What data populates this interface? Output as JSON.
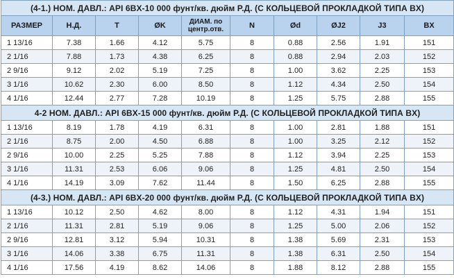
{
  "columns": [
    "РАЗМЕР",
    "Н.Д.",
    "T",
    "ØK",
    "ДИАМ. по центр.отв.",
    "N",
    "Ød",
    "ØJ2",
    "J3",
    "BX"
  ],
  "sections": [
    {
      "title": "(4-1.) НОМ. ДАВЛ.: API 6BX-10 000 фунт/кв. дюйм Р.Д. (С КОЛЬЦЕВОЙ ПРОКЛАДКОЙ ТИПА BX)",
      "rows": [
        [
          "1 13/16",
          "7.38",
          "1.66",
          "4.12",
          "5.75",
          "8",
          "0.88",
          "2.56",
          "1.91",
          "151"
        ],
        [
          "2 1/16",
          "7.88",
          "1.73",
          "4.38",
          "6.25",
          "8",
          "0.88",
          "2.94",
          "2.03",
          "152"
        ],
        [
          "2 9/16",
          "9.12",
          "2.02",
          "5.19",
          "7.25",
          "8",
          "1.00",
          "3.62",
          "2.25",
          "153"
        ],
        [
          "3 1/16",
          "10.62",
          "2.30",
          "6.00",
          "8.50",
          "8",
          "1.12",
          "4.34",
          "2.50",
          "154"
        ],
        [
          "4 1/16",
          "12.44",
          "2.77",
          "7.28",
          "10.19",
          "8",
          "1.25",
          "5.75",
          "2.88",
          "155"
        ]
      ]
    },
    {
      "title": "4-2 НОМ. ДАВЛ.: API 6BX-15 000 фунт/кв. дюйм Р.Д. (С КОЛЬЦЕВОЙ ПРОКЛАДКОЙ ТИПА BX)",
      "rows": [
        [
          "1 13/16",
          "8.19",
          "1.78",
          "4.19",
          "6.31",
          "8",
          "1.00",
          "2.81",
          "1.88",
          "151"
        ],
        [
          "2 1/16",
          "8.75",
          "2.00",
          "4.50",
          "6.88",
          "8",
          "1.00",
          "3.25",
          "2.12",
          "152"
        ],
        [
          "2 9/16",
          "10.00",
          "2.25",
          "5.25",
          "7.88",
          "8",
          "1.12",
          "3.94",
          "2.25",
          "153"
        ],
        [
          "3 1/16",
          "11.31",
          "2.53",
          "6.06",
          "9.06",
          "8",
          "1.25",
          "4.81",
          "2.50",
          "154"
        ],
        [
          "4 1/16",
          "14.19",
          "3.09",
          "7.62",
          "11.44",
          "8",
          "1.50",
          "6.25",
          "2.88",
          "155"
        ]
      ]
    },
    {
      "title": "(4-3.) НОМ. ДАВЛ.: API 6BX-20 000 фунт/кв. дюйм Р.Д. (С КОЛЬЦЕВОЙ ПРОКЛАДКОЙ ТИПА BX)",
      "rows": [
        [
          "1 13/16",
          "10.12",
          "2.50",
          "4.62",
          "8.00",
          "8",
          "1.12",
          "4.31",
          "1.94",
          "151"
        ],
        [
          "2 1/16",
          "11.31",
          "2.81",
          "5.19",
          "9.06",
          "8",
          "1.25",
          "5.00",
          "2.06",
          "152"
        ],
        [
          "2 9/16",
          "12.81",
          "3.12",
          "5.94",
          "10.31",
          "8",
          "1.38",
          "5.69",
          "2.31",
          "153"
        ],
        [
          "3 1/16",
          "14.06",
          "3.38",
          "6.75",
          "11.31",
          "8",
          "1.38",
          "6.31",
          "2.50",
          "154"
        ],
        [
          "4 1/16",
          "17.56",
          "4.19",
          "8.62",
          "14.06",
          "8",
          "1.88",
          "8.12",
          "2.88",
          "155"
        ]
      ]
    }
  ]
}
